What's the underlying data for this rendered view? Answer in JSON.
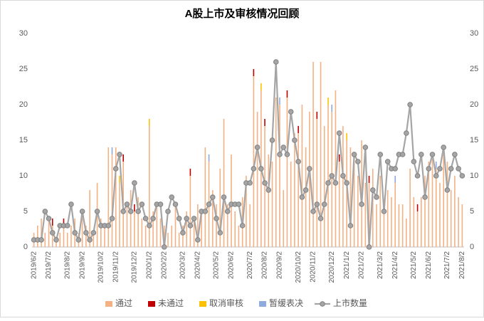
{
  "chart_data": {
    "type": "bar",
    "stacked": true,
    "title": "A股上市及审核情况回顾",
    "categories": [
      "2019/6/2",
      null,
      null,
      null,
      "2019/7/2",
      null,
      null,
      null,
      null,
      "2019/8/2",
      null,
      null,
      null,
      "2019/9/2",
      null,
      null,
      null,
      null,
      "2019/10/2",
      null,
      null,
      null,
      "2019/11/2",
      null,
      null,
      null,
      null,
      "2019/12/2",
      null,
      null,
      null,
      "2020/1/2",
      null,
      null,
      null,
      "2020/2/2",
      null,
      null,
      null,
      null,
      "2020/3/2",
      null,
      null,
      null,
      "2020/4/2",
      null,
      null,
      null,
      null,
      "2020/5/2",
      null,
      null,
      null,
      "2020/6/2",
      null,
      null,
      null,
      null,
      "2020/7/2",
      null,
      null,
      null,
      "2020/8/2",
      null,
      null,
      null,
      "2020/9/2",
      null,
      null,
      null,
      null,
      "2020/10/2",
      null,
      null,
      null,
      "2020/11/2",
      null,
      null,
      null,
      null,
      "2020/12/2",
      null,
      null,
      null,
      "2021/1/2",
      null,
      null,
      null,
      "2021/2/2",
      null,
      null,
      null,
      null,
      "2021/3/2",
      null,
      null,
      null,
      "2021/4/2",
      null,
      null,
      null,
      null,
      "2021/5/2",
      null,
      null,
      null,
      "2021/6/2",
      null,
      null,
      null,
      null,
      "2021/7/2",
      null,
      null,
      null,
      "2021/8/2"
    ],
    "series": [
      {
        "name": "通过",
        "color": "#f4b183",
        "values": [
          2,
          3,
          4,
          2,
          4,
          3,
          1,
          2,
          3,
          2,
          3,
          4,
          2,
          5,
          3,
          8,
          2,
          9,
          4,
          3,
          14,
          13,
          14,
          9,
          12,
          6,
          8,
          5,
          7,
          4,
          3,
          17,
          5,
          6,
          4,
          3,
          2,
          3,
          6,
          2,
          3,
          5,
          10,
          4,
          6,
          5,
          14,
          12,
          8,
          6,
          11,
          18,
          6,
          13,
          5,
          3,
          7,
          10,
          6,
          24,
          19,
          22,
          17,
          13,
          12,
          21,
          20,
          8,
          21,
          12,
          16,
          16,
          20,
          14,
          19,
          26,
          18,
          26,
          17,
          20,
          19,
          22,
          12,
          17,
          15,
          14,
          13,
          10,
          15,
          9,
          9,
          11,
          6,
          10,
          5,
          8,
          7,
          9,
          6,
          6,
          4,
          11,
          7,
          5,
          7,
          10,
          12,
          13,
          11,
          9,
          13,
          12,
          8,
          10,
          7,
          6
        ]
      },
      {
        "name": "未通过",
        "color": "#c00000",
        "values": [
          0,
          0,
          0,
          0,
          0,
          1,
          0,
          0,
          1,
          0,
          0,
          0,
          0,
          0,
          0,
          0,
          0,
          0,
          0,
          0,
          0,
          0,
          0,
          0,
          1,
          0,
          0,
          1,
          0,
          0,
          0,
          0,
          0,
          0,
          0,
          0,
          0,
          0,
          0,
          0,
          0,
          0,
          1,
          0,
          0,
          0,
          0,
          0,
          0,
          0,
          0,
          0,
          0,
          0,
          0,
          0,
          0,
          0,
          0,
          1,
          0,
          0,
          1,
          0,
          0,
          0,
          0,
          0,
          1,
          0,
          0,
          1,
          0,
          0,
          0,
          0,
          1,
          0,
          0,
          0,
          0,
          0,
          1,
          0,
          0,
          0,
          0,
          0,
          0,
          0,
          1,
          0,
          0,
          0,
          1,
          0,
          0,
          0,
          0,
          0,
          0,
          0,
          0,
          1,
          0,
          0,
          0,
          0,
          0,
          0,
          0,
          0,
          0,
          0,
          0,
          0
        ]
      },
      {
        "name": "取消审核",
        "color": "#ffc000",
        "values": [
          0,
          0,
          0,
          0,
          0,
          0,
          0,
          0,
          0,
          0,
          0,
          0,
          0,
          0,
          0,
          0,
          0,
          0,
          0,
          0,
          0,
          0,
          0,
          1,
          0,
          0,
          0,
          0,
          0,
          0,
          0,
          1,
          0,
          0,
          0,
          0,
          0,
          0,
          0,
          0,
          0,
          0,
          0,
          0,
          0,
          0,
          0,
          0,
          0,
          0,
          0,
          0,
          0,
          0,
          0,
          0,
          0,
          0,
          0,
          0,
          0,
          1,
          0,
          0,
          0,
          0,
          0,
          0,
          0,
          0,
          0,
          0,
          0,
          0,
          0,
          0,
          0,
          0,
          0,
          1,
          0,
          0,
          0,
          0,
          1,
          0,
          0,
          0,
          0,
          0,
          0,
          0,
          0,
          0,
          0,
          0,
          0,
          0,
          0,
          0,
          0,
          0,
          0,
          0,
          0,
          0,
          0,
          0,
          0,
          0,
          0,
          0,
          0,
          0,
          0,
          0
        ]
      },
      {
        "name": "暂缓表决",
        "color": "#8faadc",
        "values": [
          0,
          0,
          0,
          0,
          0,
          0,
          0,
          0,
          0,
          0,
          0,
          0,
          0,
          0,
          0,
          0,
          0,
          0,
          0,
          0,
          0,
          1,
          0,
          0,
          0,
          0,
          0,
          0,
          0,
          0,
          0,
          0,
          0,
          0,
          0,
          0,
          0,
          0,
          0,
          0,
          0,
          0,
          0,
          0,
          0,
          0,
          0,
          1,
          0,
          0,
          0,
          0,
          0,
          0,
          0,
          0,
          0,
          0,
          0,
          0,
          0,
          0,
          0,
          0,
          0,
          0,
          1,
          0,
          0,
          0,
          0,
          0,
          0,
          0,
          0,
          0,
          0,
          0,
          0,
          0,
          1,
          0,
          0,
          0,
          0,
          0,
          0,
          0,
          0,
          0,
          0,
          0,
          0,
          0,
          0,
          0,
          0,
          1,
          0,
          0,
          0,
          0,
          0,
          0,
          0,
          0,
          0,
          0,
          1,
          0,
          0,
          0,
          0,
          0,
          0,
          0
        ]
      },
      {
        "name": "上市数量",
        "type": "line",
        "axis": "y2",
        "color": "#a5a5a5",
        "values": [
          1,
          1,
          1,
          5,
          4,
          2,
          1,
          3,
          3,
          3,
          6,
          2,
          1,
          5,
          2,
          1,
          2,
          5,
          3,
          3,
          3,
          4,
          11,
          13,
          5,
          6,
          5,
          9,
          5,
          6,
          4,
          3,
          4,
          6,
          6,
          0,
          5,
          7,
          6,
          4,
          2,
          4,
          3,
          4,
          1,
          5,
          5,
          6,
          7,
          4,
          2,
          7,
          5,
          6,
          6,
          6,
          3,
          9,
          9,
          11,
          14,
          11,
          9,
          8,
          15,
          26,
          13,
          14,
          13,
          19,
          15,
          12,
          7,
          8,
          11,
          5,
          6,
          4,
          6,
          9,
          10,
          9,
          16,
          10,
          9,
          3,
          13,
          12,
          6,
          14,
          0,
          8,
          7,
          13,
          5,
          12,
          11,
          11,
          13,
          13,
          16,
          20,
          12,
          10,
          13,
          7,
          11,
          13,
          10,
          11,
          14,
          8,
          11,
          13,
          11,
          10
        ]
      }
    ],
    "ylim": [
      0,
      30
    ],
    "yticks": [
      0,
      5,
      10,
      15,
      20,
      25,
      30
    ],
    "y2lim": [
      0,
      30
    ],
    "y2ticks": [
      0,
      5,
      10,
      15,
      20,
      25,
      30
    ],
    "grid": false,
    "legend": "bottom"
  }
}
